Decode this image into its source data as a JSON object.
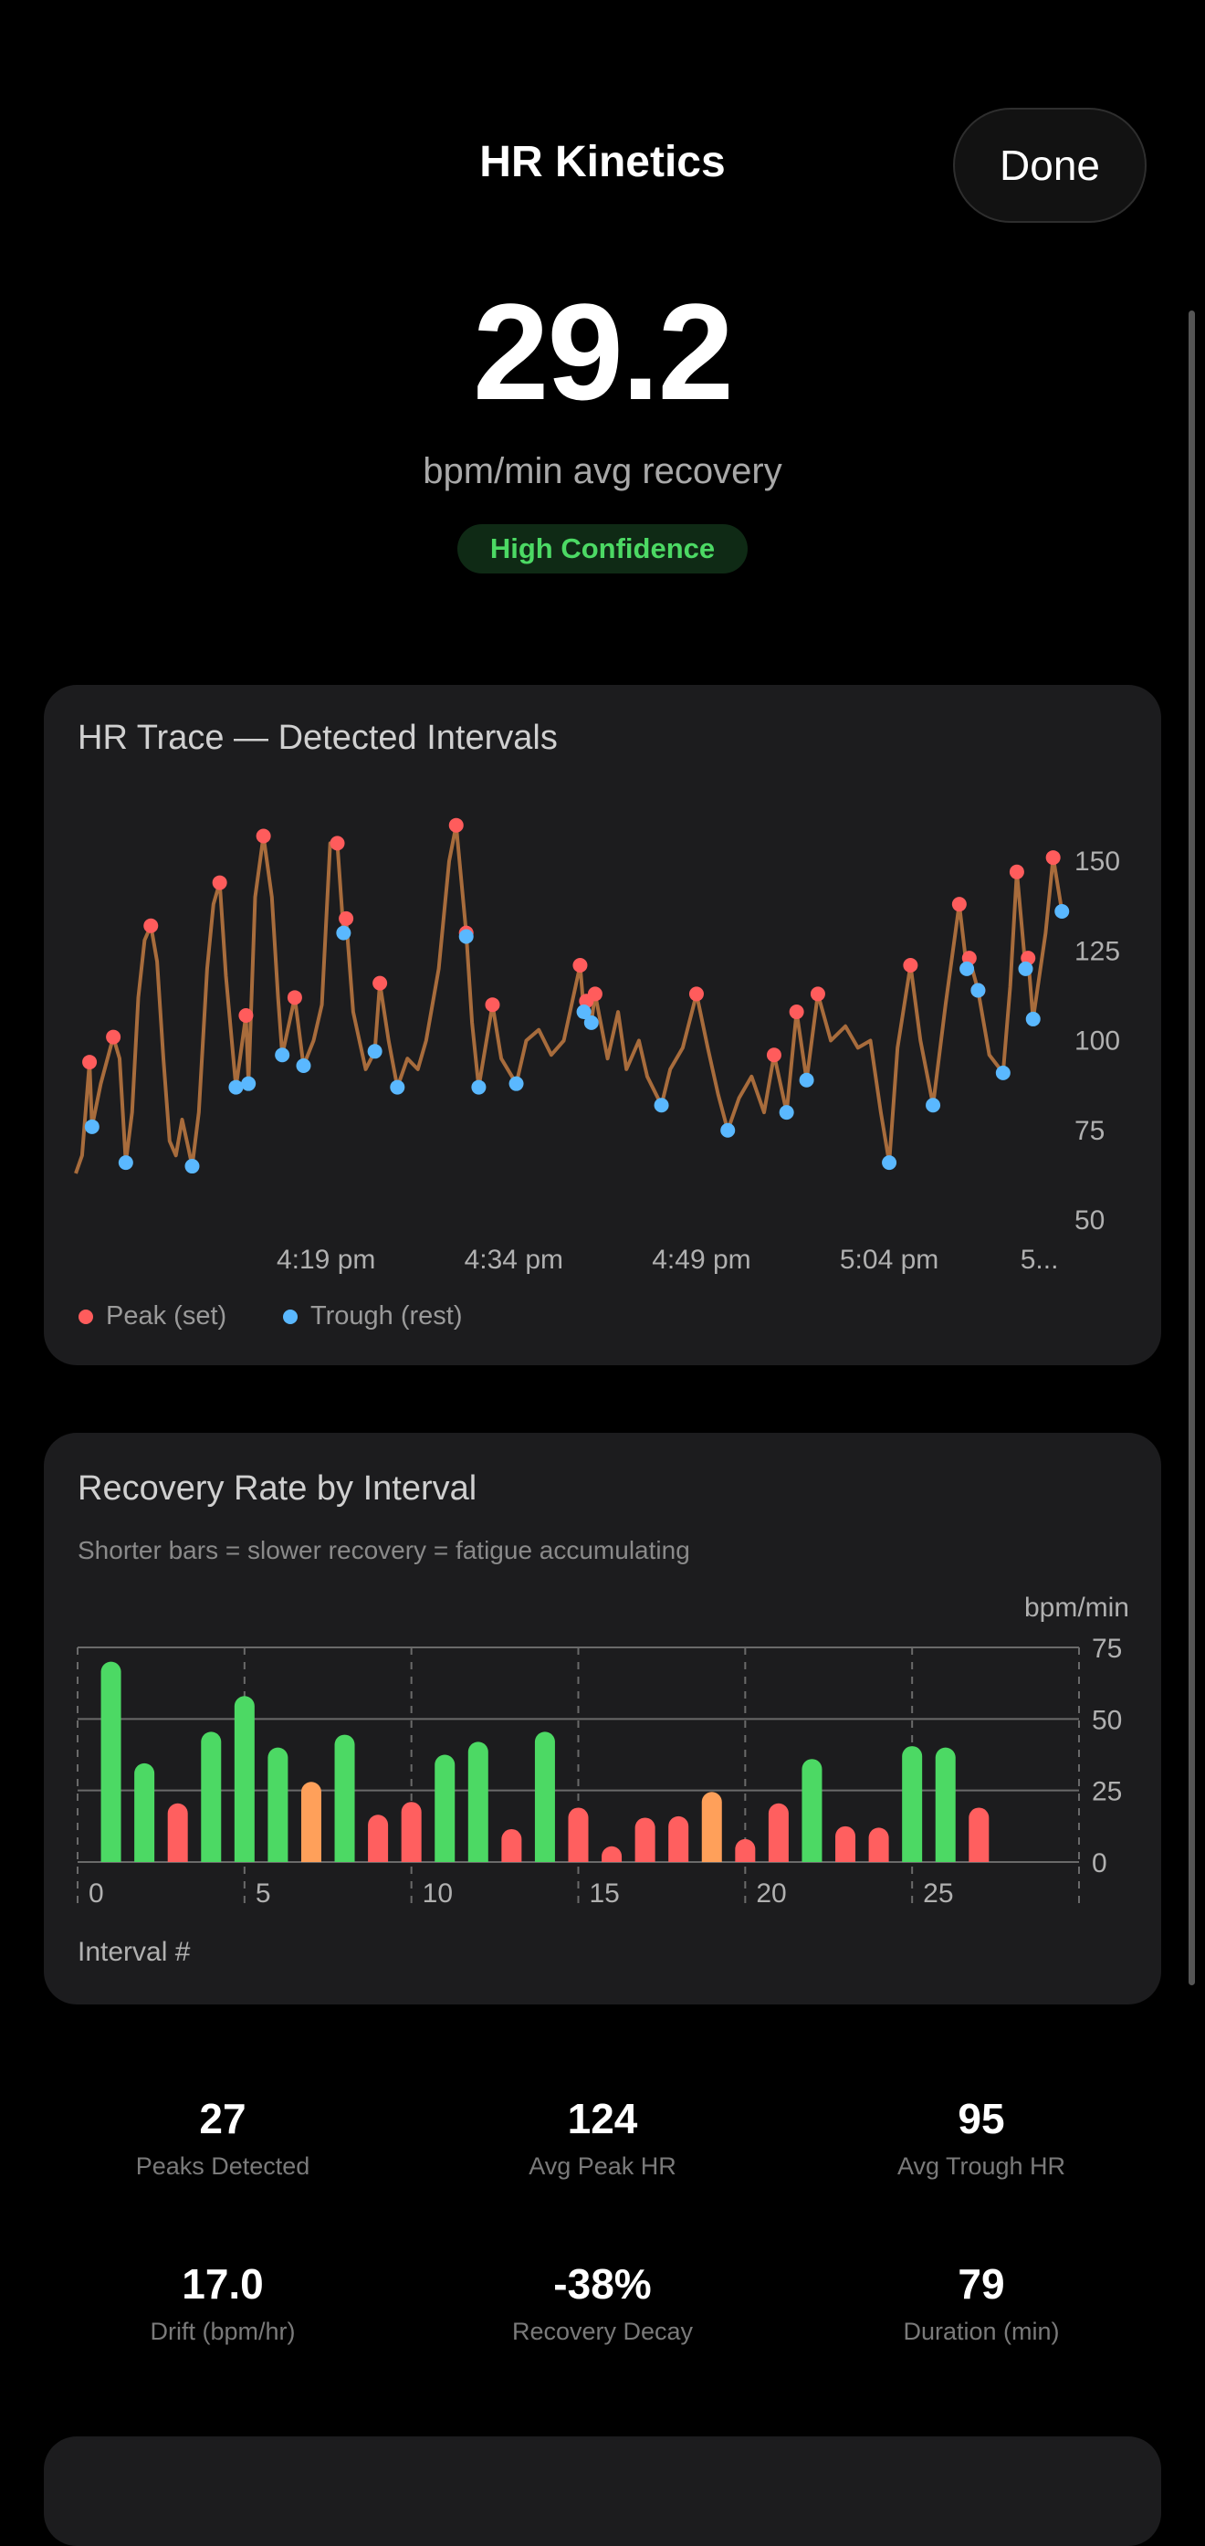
{
  "header": {
    "title": "HR Kinetics",
    "done_label": "Done"
  },
  "summary": {
    "value": "29.2",
    "unit_label": "bpm/min avg recovery",
    "confidence": "High Confidence"
  },
  "colors": {
    "trace": "#a86c3c",
    "peak": "#ff5c5c",
    "trough": "#5ab8ff",
    "good": "#4cd964",
    "fair": "#ffa05a",
    "poor": "#ff5f5f",
    "card": "#1c1c1e"
  },
  "chart_data": [
    {
      "type": "line",
      "title": "HR Trace — Detected Intervals",
      "ylim": [
        50,
        160
      ],
      "xlim": [
        "15:59:00",
        "17:18:00"
      ],
      "y_ticks": [
        "150",
        "125",
        "100",
        "75",
        "50"
      ],
      "x_ticks": [
        "4:19 pm",
        "4:34 pm",
        "4:49 pm",
        "5:04 pm",
        "5..."
      ],
      "x_tick_times": [
        "16:19:00",
        "16:34:00",
        "16:49:00",
        "17:04:00",
        "17:16:00"
      ],
      "y_axis_side": "right",
      "legend": [
        {
          "label": "Peak (set)",
          "color": "#ff5c5c"
        },
        {
          "label": "Trough (rest)",
          "color": "#5ab8ff"
        }
      ],
      "legend_placement": "bottom-left",
      "trace": [
        [
          "15:59:00",
          63
        ],
        [
          "15:59:30",
          68
        ],
        [
          "16:00:06",
          94
        ],
        [
          "16:00:18",
          76
        ],
        [
          "16:01:00",
          88
        ],
        [
          "16:02:00",
          101
        ],
        [
          "16:02:30",
          95
        ],
        [
          "16:03:00",
          66
        ],
        [
          "16:03:30",
          80
        ],
        [
          "16:04:00",
          112
        ],
        [
          "16:04:30",
          128
        ],
        [
          "16:05:00",
          132
        ],
        [
          "16:05:30",
          122
        ],
        [
          "16:06:00",
          95
        ],
        [
          "16:06:30",
          72
        ],
        [
          "16:07:00",
          68
        ],
        [
          "16:07:30",
          78
        ],
        [
          "16:08:00",
          70
        ],
        [
          "16:08:18",
          65
        ],
        [
          "16:08:50",
          80
        ],
        [
          "16:09:30",
          120
        ],
        [
          "16:10:00",
          138
        ],
        [
          "16:10:30",
          144
        ],
        [
          "16:11:00",
          118
        ],
        [
          "16:11:48",
          87
        ],
        [
          "16:12:36",
          107
        ],
        [
          "16:12:48",
          88
        ],
        [
          "16:13:20",
          140
        ],
        [
          "16:14:00",
          157
        ],
        [
          "16:14:40",
          140
        ],
        [
          "16:15:10",
          112
        ],
        [
          "16:15:30",
          96
        ],
        [
          "16:16:30",
          112
        ],
        [
          "16:17:12",
          93
        ],
        [
          "16:18:00",
          100
        ],
        [
          "16:18:40",
          110
        ],
        [
          "16:19:20",
          155
        ],
        [
          "16:19:54",
          155
        ],
        [
          "16:20:24",
          130
        ],
        [
          "16:20:36",
          134
        ],
        [
          "16:21:10",
          108
        ],
        [
          "16:21:40",
          100
        ],
        [
          "16:22:10",
          92
        ],
        [
          "16:22:54",
          97
        ],
        [
          "16:23:18",
          116
        ],
        [
          "16:24:00",
          100
        ],
        [
          "16:24:42",
          87
        ],
        [
          "16:25:30",
          95
        ],
        [
          "16:26:20",
          92
        ],
        [
          "16:27:00",
          100
        ],
        [
          "16:28:00",
          120
        ],
        [
          "16:28:50",
          150
        ],
        [
          "16:29:24",
          160
        ],
        [
          "16:30:12",
          130
        ],
        [
          "16:30:40",
          105
        ],
        [
          "16:31:12",
          87
        ],
        [
          "16:32:18",
          110
        ],
        [
          "16:33:00",
          95
        ],
        [
          "16:34:12",
          88
        ],
        [
          "16:35:00",
          100
        ],
        [
          "16:36:00",
          103
        ],
        [
          "16:37:00",
          96
        ],
        [
          "16:38:00",
          100
        ],
        [
          "16:39:18",
          121
        ],
        [
          "16:39:36",
          108
        ],
        [
          "16:39:48",
          111
        ],
        [
          "16:40:12",
          105
        ],
        [
          "16:40:30",
          113
        ],
        [
          "16:41:30",
          95
        ],
        [
          "16:42:20",
          108
        ],
        [
          "16:43:00",
          92
        ],
        [
          "16:44:00",
          100
        ],
        [
          "16:44:40",
          90
        ],
        [
          "16:45:48",
          82
        ],
        [
          "16:46:30",
          92
        ],
        [
          "16:47:30",
          98
        ],
        [
          "16:48:36",
          113
        ],
        [
          "16:49:30",
          98
        ],
        [
          "16:50:20",
          85
        ],
        [
          "16:51:06",
          75
        ],
        [
          "16:52:00",
          84
        ],
        [
          "16:53:00",
          90
        ],
        [
          "16:54:00",
          80
        ],
        [
          "16:54:48",
          96
        ],
        [
          "16:55:48",
          80
        ],
        [
          "16:56:36",
          108
        ],
        [
          "16:57:24",
          89
        ],
        [
          "16:58:18",
          113
        ],
        [
          "16:59:20",
          100
        ],
        [
          "17:00:30",
          104
        ],
        [
          "17:01:30",
          98
        ],
        [
          "17:02:30",
          100
        ],
        [
          "17:03:20",
          80
        ],
        [
          "17:04:00",
          66
        ],
        [
          "17:04:40",
          98
        ],
        [
          "17:05:42",
          121
        ],
        [
          "17:06:30",
          100
        ],
        [
          "17:07:30",
          82
        ],
        [
          "17:08:30",
          110
        ],
        [
          "17:09:36",
          138
        ],
        [
          "17:10:12",
          120
        ],
        [
          "17:10:24",
          123
        ],
        [
          "17:11:06",
          114
        ],
        [
          "17:12:00",
          96
        ],
        [
          "17:13:06",
          91
        ],
        [
          "17:13:40",
          115
        ],
        [
          "17:14:12",
          147
        ],
        [
          "17:14:54",
          120
        ],
        [
          "17:15:06",
          123
        ],
        [
          "17:15:30",
          106
        ],
        [
          "17:16:30",
          130
        ],
        [
          "17:17:06",
          151
        ],
        [
          "17:17:48",
          136
        ]
      ],
      "peaks": [
        [
          "16:00:06",
          94
        ],
        [
          "16:02:00",
          101
        ],
        [
          "16:05:00",
          132
        ],
        [
          "16:10:30",
          144
        ],
        [
          "16:12:36",
          107
        ],
        [
          "16:14:00",
          157
        ],
        [
          "16:16:30",
          112
        ],
        [
          "16:19:54",
          155
        ],
        [
          "16:20:36",
          134
        ],
        [
          "16:23:18",
          116
        ],
        [
          "16:29:24",
          160
        ],
        [
          "16:30:12",
          130
        ],
        [
          "16:32:18",
          110
        ],
        [
          "16:39:18",
          121
        ],
        [
          "16:39:48",
          111
        ],
        [
          "16:40:30",
          113
        ],
        [
          "16:48:36",
          113
        ],
        [
          "16:54:48",
          96
        ],
        [
          "16:56:36",
          108
        ],
        [
          "16:58:18",
          113
        ],
        [
          "17:05:42",
          121
        ],
        [
          "17:09:36",
          138
        ],
        [
          "17:10:24",
          123
        ],
        [
          "17:11:06",
          114
        ],
        [
          "17:14:12",
          147
        ],
        [
          "17:15:06",
          123
        ],
        [
          "17:17:06",
          151
        ]
      ],
      "troughs": [
        [
          "16:00:18",
          76
        ],
        [
          "16:03:00",
          66
        ],
        [
          "16:08:18",
          65
        ],
        [
          "16:11:48",
          87
        ],
        [
          "16:12:48",
          88
        ],
        [
          "16:15:30",
          96
        ],
        [
          "16:17:12",
          93
        ],
        [
          "16:20:24",
          130
        ],
        [
          "16:22:54",
          97
        ],
        [
          "16:24:42",
          87
        ],
        [
          "16:30:12",
          129
        ],
        [
          "16:31:12",
          87
        ],
        [
          "16:34:12",
          88
        ],
        [
          "16:39:36",
          108
        ],
        [
          "16:40:12",
          105
        ],
        [
          "16:45:48",
          82
        ],
        [
          "16:51:06",
          75
        ],
        [
          "16:55:48",
          80
        ],
        [
          "16:57:24",
          89
        ],
        [
          "17:04:00",
          66
        ],
        [
          "17:07:30",
          82
        ],
        [
          "17:10:12",
          120
        ],
        [
          "17:11:06",
          114
        ],
        [
          "17:13:06",
          91
        ],
        [
          "17:14:54",
          120
        ],
        [
          "17:15:30",
          106
        ],
        [
          "17:17:48",
          136
        ]
      ]
    },
    {
      "type": "bar",
      "title": "Recovery Rate by Interval",
      "subtitle": "Shorter bars = slower recovery = fatigue accumulating",
      "ylabel": "bpm/min",
      "xlabel": "Interval #",
      "ylim": [
        0,
        75
      ],
      "xlim": [
        0,
        30
      ],
      "y_ticks": [
        "75",
        "50",
        "25",
        "0"
      ],
      "x_ticks": [
        "0",
        "5",
        "10",
        "15",
        "20",
        "25"
      ],
      "grid": true,
      "x": [
        1,
        2,
        3,
        4,
        5,
        6,
        7,
        8,
        9,
        10,
        11,
        12,
        13,
        14,
        15,
        16,
        17,
        18,
        19,
        20,
        21,
        22,
        23,
        24,
        25,
        26,
        27
      ],
      "values": [
        70,
        34.5,
        20.5,
        45.5,
        58,
        40,
        28,
        44.5,
        16.5,
        21,
        37.5,
        42,
        11.5,
        45.5,
        19,
        5.5,
        15.5,
        16,
        24.5,
        8,
        20.5,
        36,
        12.5,
        12,
        40.5,
        40,
        19
      ],
      "bar_colors": [
        "#4cd964",
        "#4cd964",
        "#ff5f5f",
        "#4cd964",
        "#4cd964",
        "#4cd964",
        "#ffa05a",
        "#4cd964",
        "#ff5f5f",
        "#ff5f5f",
        "#4cd964",
        "#4cd964",
        "#ff5f5f",
        "#4cd964",
        "#ff5f5f",
        "#ff5f5f",
        "#ff5f5f",
        "#ff5f5f",
        "#ffa05a",
        "#ff5f5f",
        "#ff5f5f",
        "#4cd964",
        "#ff5f5f",
        "#ff5f5f",
        "#4cd964",
        "#4cd964",
        "#ff5f5f"
      ]
    }
  ],
  "stats": [
    {
      "value": "27",
      "label": "Peaks Detected"
    },
    {
      "value": "124",
      "label": "Avg Peak HR"
    },
    {
      "value": "95",
      "label": "Avg Trough HR"
    },
    {
      "value": "17.0",
      "label": "Drift (bpm/hr)"
    },
    {
      "value": "-38%",
      "label": "Recovery Decay"
    },
    {
      "value": "79",
      "label": "Duration (min)"
    }
  ]
}
